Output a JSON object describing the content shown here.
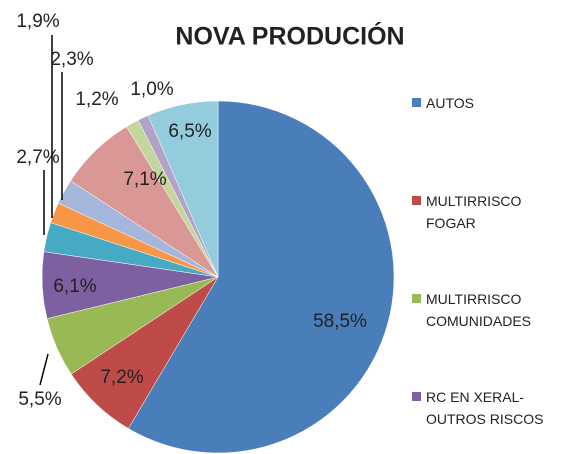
{
  "chart_data": {
    "type": "pie",
    "title": "NOVA PRODUCIÓN",
    "categories": [
      "AUTOS",
      "MULTIRRISCO FOGAR",
      "MULTIRRISCO COMUNIDADES",
      "RC EN XERAL-OUTROS RISCOS",
      null,
      null,
      null,
      null,
      null,
      null,
      null
    ],
    "values": [
      58.5,
      7.2,
      5.5,
      6.1,
      2.7,
      1.9,
      2.3,
      7.1,
      1.2,
      1.0,
      6.5
    ],
    "value_labels": [
      "58,5%",
      "7,2%",
      "5,5%",
      "6,1%",
      "2,7%",
      "1,9%",
      "2,3%",
      "7,1%",
      "1,2%",
      "1,0%",
      "6,5%"
    ],
    "colors": [
      "#4a7ebb",
      "#be4b48",
      "#98b954",
      "#7d60a0",
      "#46aac5",
      "#f79646",
      "#a5b6db",
      "#d99795",
      "#c3d69b",
      "#b3a2c7",
      "#93cddd"
    ],
    "legend": "right"
  }
}
